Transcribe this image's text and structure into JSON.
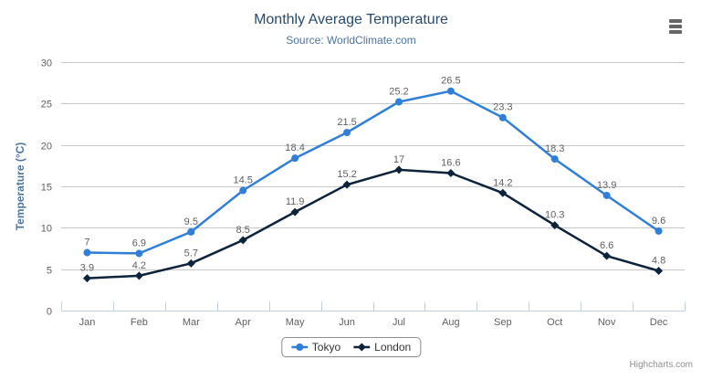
{
  "chart_data": {
    "type": "line",
    "title": "Monthly Average Temperature",
    "subtitle": "Source: WorldClimate.com",
    "categories": [
      "Jan",
      "Feb",
      "Mar",
      "Apr",
      "May",
      "Jun",
      "Jul",
      "Aug",
      "Sep",
      "Oct",
      "Nov",
      "Dec"
    ],
    "series": [
      {
        "name": "Tokyo",
        "marker": "circle",
        "color": "#2f7ed8",
        "values": [
          7,
          6.9,
          9.5,
          14.5,
          18.4,
          21.5,
          25.2,
          26.5,
          23.3,
          18.3,
          13.9,
          9.6
        ]
      },
      {
        "name": "London",
        "marker": "diamond",
        "color": "#0d233a",
        "values": [
          3.9,
          4.2,
          5.7,
          8.5,
          11.9,
          15.2,
          17,
          16.6,
          14.2,
          10.3,
          6.6,
          4.8
        ]
      }
    ],
    "xlabel": "",
    "ylabel": "Temperature (°C)",
    "ylim": [
      0,
      30
    ],
    "ytick_interval": 5,
    "grid": true,
    "data_labels": true,
    "legend_position": "bottom"
  },
  "credits": {
    "text": "Highcharts.com"
  },
  "colors": {
    "title": "#274b6d",
    "subtitle": "#4d759e",
    "axis_title": "#4d759e",
    "axis_labels": "#606060",
    "data_labels": "#606060",
    "grid_line": "#c8c8c8",
    "axis_line": "#c0d0e0",
    "legend_text": "#333333",
    "legend_border": "#909090",
    "credits_text": "#909090",
    "menu_icon": "#666666",
    "background": "#ffffff"
  }
}
